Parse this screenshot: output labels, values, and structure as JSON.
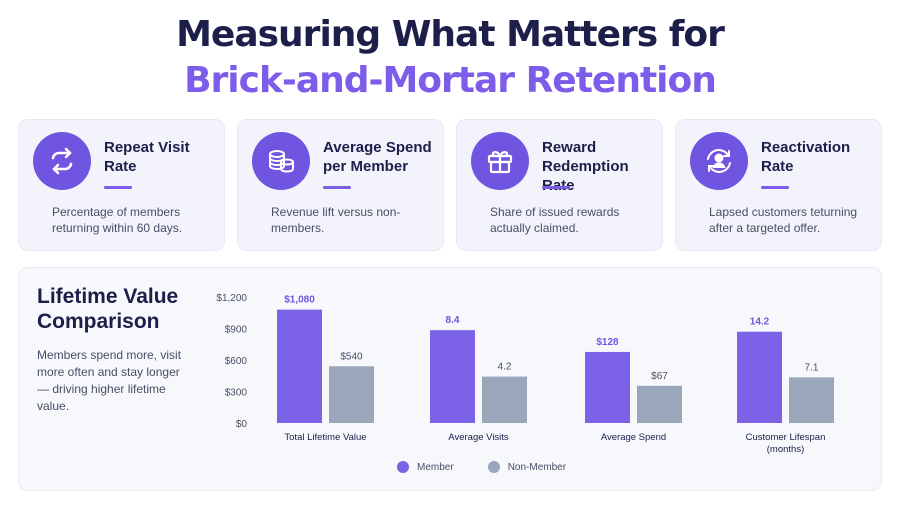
{
  "header": {
    "title_line1": "Measuring What Matters for",
    "title_line2": "Brick-and-Mortar Retention"
  },
  "colors": {
    "member": "#7b62e6",
    "non_member": "#9aa6ba",
    "title_accent": "#7c5ce8"
  },
  "cards": [
    {
      "icon": "repeat-arrows-icon",
      "title": "Repeat Visit Rate",
      "desc": "Percentage of members returning within 60 days."
    },
    {
      "icon": "coin-stack-icon",
      "title": "Average Spend per Member",
      "desc": "Revenue lift versus non-members."
    },
    {
      "icon": "gift-icon",
      "title": "Reward Redemption Rate",
      "desc": "Share of issued rewards actually claimed."
    },
    {
      "icon": "user-cycle-icon",
      "title": "Reactivation Rate",
      "desc": "Lapsed customers teturning after a targeted offer."
    }
  ],
  "panel": {
    "title": "Lifetime Value Comparison",
    "desc": "Members spend more, visit more often and stay longer — driving higher lifetime value."
  },
  "chart_data": {
    "type": "bar",
    "yticks": [
      "$1,200",
      "$900",
      "$600",
      "$300",
      "$0"
    ],
    "categories": [
      {
        "label": "Total Lifetime Value",
        "label2": ""
      },
      {
        "label": "Average Visits",
        "label2": ""
      },
      {
        "label": "Average Spend",
        "label2": ""
      },
      {
        "label": "Customer Lifespan",
        "label2": "(months)"
      }
    ],
    "series": [
      {
        "name": "Member",
        "values": [
          1080,
          8.4,
          128,
          14.2
        ],
        "labels": [
          "$1,080",
          "8.4",
          "$128",
          "14.2"
        ]
      },
      {
        "name": "Non-Member",
        "values": [
          540,
          4.2,
          67,
          7.1
        ],
        "labels": [
          "$540",
          "4.2",
          "$67",
          "7.1"
        ]
      }
    ],
    "legend_position": "bottom"
  }
}
